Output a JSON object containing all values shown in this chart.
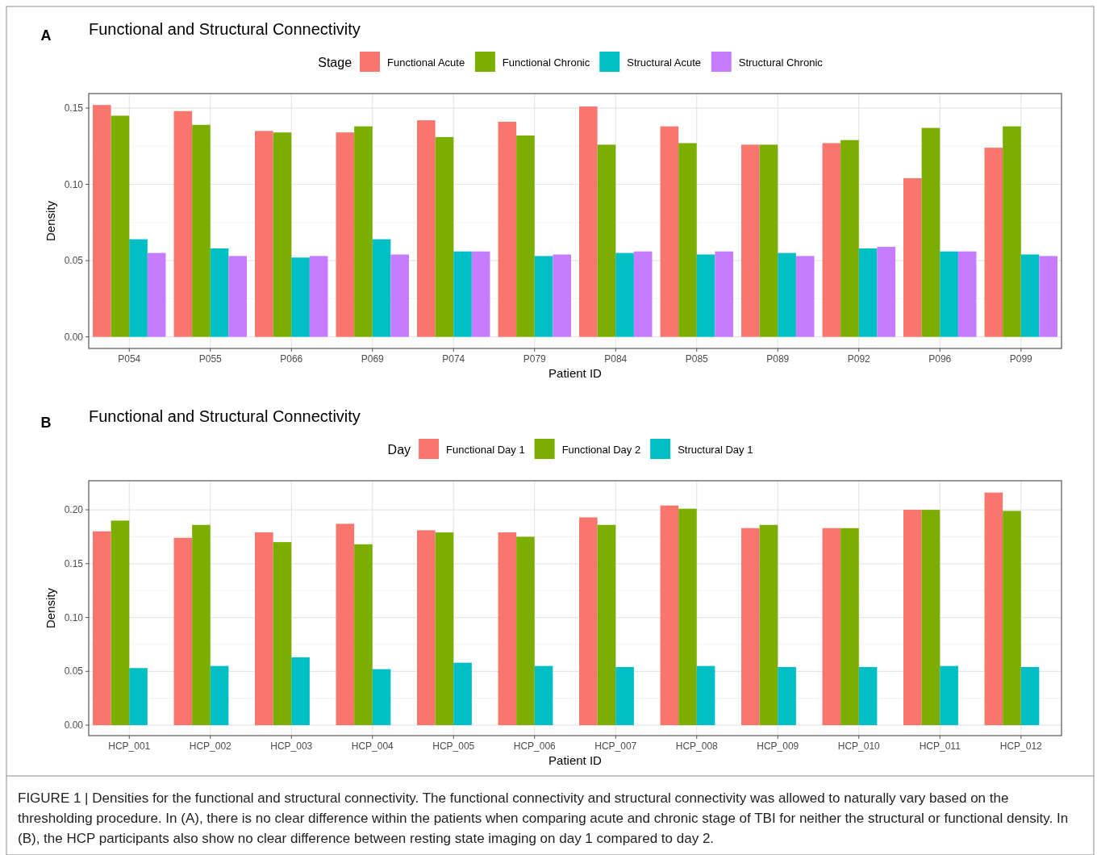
{
  "chart_data": [
    {
      "type": "bar",
      "title": "Functional and Structural Connectivity",
      "annotations": [
        "A"
      ],
      "xlabel": "Patient ID",
      "ylabel": "Density",
      "legend_title": "Stage",
      "legend": "top",
      "grid": true,
      "categories": [
        "P054",
        "P055",
        "P066",
        "P069",
        "P074",
        "P079",
        "P084",
        "P085",
        "P089",
        "P092",
        "P096",
        "P099"
      ],
      "ylim": [
        -0.0076,
        0.1595
      ],
      "yticks": [
        {
          "value": 0,
          "label": "0.00"
        },
        {
          "value": 0.05,
          "label": "0.05"
        },
        {
          "value": 0.1,
          "label": "0.10"
        },
        {
          "value": 0.15,
          "label": "0.15"
        }
      ],
      "series": [
        {
          "name": "Functional Acute",
          "color": "#f8766d",
          "values": [
            0.152,
            0.148,
            0.135,
            0.134,
            0.142,
            0.141,
            0.151,
            0.138,
            0.126,
            0.127,
            0.104,
            0.124
          ]
        },
        {
          "name": "Functional Chronic",
          "color": "#7cae00",
          "values": [
            0.145,
            0.139,
            0.134,
            0.138,
            0.131,
            0.132,
            0.126,
            0.127,
            0.126,
            0.129,
            0.137,
            0.138
          ]
        },
        {
          "name": "Structural Acute",
          "color": "#00bfc4",
          "values": [
            0.064,
            0.058,
            0.052,
            0.064,
            0.056,
            0.053,
            0.055,
            0.054,
            0.055,
            0.058,
            0.056,
            0.054
          ]
        },
        {
          "name": "Structural Chronic",
          "color": "#c77cff",
          "values": [
            0.055,
            0.053,
            0.053,
            0.054,
            0.056,
            0.054,
            0.056,
            0.056,
            0.053,
            0.059,
            0.056,
            0.053
          ]
        }
      ]
    },
    {
      "type": "bar",
      "title": "Functional and Structural Connectivity",
      "annotations": [
        "B",
        "FIGURE 1 | Densities for the functional and structural connectivity. The functional connectivity and structural connectivity was allowed to naturally vary based on the thresholding procedure. In (A), there is no clear difference within the patients when comparing acute and chronic stage of TBI for neither the structural or functional density. In (B), the HCP participants also show no clear difference between resting state imaging on day 1 compared to day 2."
      ],
      "xlabel": "Patient ID",
      "ylabel": "Density",
      "legend_title": "Day",
      "legend": "top",
      "grid": true,
      "categories": [
        "HCP_001",
        "HCP_002",
        "HCP_003",
        "HCP_004",
        "HCP_005",
        "HCP_006",
        "HCP_007",
        "HCP_008",
        "HCP_009",
        "HCP_010",
        "HCP_011",
        "HCP_012"
      ],
      "ylim": [
        -0.0097,
        0.227
      ],
      "yticks": [
        {
          "value": 0,
          "label": "0.00"
        },
        {
          "value": 0.05,
          "label": "0.05"
        },
        {
          "value": 0.1,
          "label": "0.10"
        },
        {
          "value": 0.15,
          "label": "0.15"
        },
        {
          "value": 0.2,
          "label": "0.20"
        }
      ],
      "series": [
        {
          "name": "Functional Day 1",
          "color": "#f8766d",
          "values": [
            0.18,
            0.174,
            0.179,
            0.187,
            0.181,
            0.179,
            0.193,
            0.204,
            0.183,
            0.183,
            0.2,
            0.216
          ]
        },
        {
          "name": "Functional Day 2",
          "color": "#7cae00",
          "values": [
            0.19,
            0.186,
            0.17,
            0.168,
            0.179,
            0.175,
            0.186,
            0.201,
            0.186,
            0.183,
            0.2,
            0.199
          ]
        },
        {
          "name": "Structural Day 1",
          "color": "#00bfc4",
          "values": [
            0.053,
            0.055,
            0.063,
            0.052,
            0.058,
            0.055,
            0.054,
            0.055,
            0.054,
            0.054,
            0.055,
            0.054
          ]
        }
      ]
    }
  ]
}
